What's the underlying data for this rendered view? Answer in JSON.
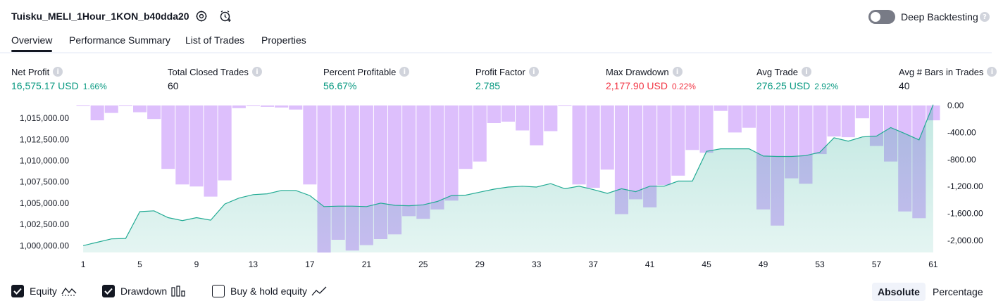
{
  "header": {
    "strategy_name": "Tuisku_MELI_1Hour_1KON_b40dda20",
    "deep_backtesting_label": "Deep Backtesting",
    "deep_backtesting_enabled": false
  },
  "tabs": [
    {
      "label": "Overview",
      "active": true
    },
    {
      "label": "Performance Summary",
      "active": false
    },
    {
      "label": "List of Trades",
      "active": false
    },
    {
      "label": "Properties",
      "active": false
    }
  ],
  "metrics": [
    {
      "label": "Net Profit",
      "value": "16,575.17 USD",
      "pct": "1.66%",
      "tone": "green"
    },
    {
      "label": "Total Closed Trades",
      "value": "60",
      "pct": "",
      "tone": "plain"
    },
    {
      "label": "Percent Profitable",
      "value": "56.67%",
      "pct": "",
      "tone": "green"
    },
    {
      "label": "Profit Factor",
      "value": "2.785",
      "pct": "",
      "tone": "green"
    },
    {
      "label": "Max Drawdown",
      "value": "2,177.90 USD",
      "pct": "0.22%",
      "tone": "red"
    },
    {
      "label": "Avg Trade",
      "value": "276.25 USD",
      "pct": "2.92%",
      "tone": "green"
    },
    {
      "label": "Avg # Bars in Trades",
      "value": "40",
      "pct": "",
      "tone": "plain"
    }
  ],
  "chart_data": {
    "type": "area",
    "x": [
      1,
      2,
      3,
      4,
      5,
      6,
      7,
      8,
      9,
      10,
      11,
      12,
      13,
      14,
      15,
      16,
      17,
      18,
      19,
      20,
      21,
      22,
      23,
      24,
      25,
      26,
      27,
      28,
      29,
      30,
      31,
      32,
      33,
      34,
      35,
      36,
      37,
      38,
      39,
      40,
      41,
      42,
      43,
      44,
      45,
      46,
      47,
      48,
      49,
      50,
      51,
      52,
      53,
      54,
      55,
      56,
      57,
      58,
      59,
      60,
      61
    ],
    "x_tick_labels": [
      "1",
      "5",
      "9",
      "13",
      "17",
      "21",
      "25",
      "29",
      "33",
      "37",
      "41",
      "45",
      "49",
      "53",
      "57",
      "61"
    ],
    "left_axis": {
      "ticks": [
        "1,000,000.00",
        "1,002,500.00",
        "1,005,000.00",
        "1,007,500.00",
        "1,010,000.00",
        "1,012,500.00",
        "1,015,000.00"
      ],
      "ylim": [
        999200,
        1016500
      ]
    },
    "right_axis": {
      "ticks": [
        "0.00",
        "-400.00",
        "-800.00",
        "-1,200.00",
        "-1,600.00",
        "-2,000.00"
      ],
      "ylim": [
        -2177.9,
        0
      ]
    },
    "series": [
      {
        "name": "Equity",
        "color": "#22ab94",
        "values": [
          1000000,
          1000400,
          1000800,
          1000850,
          1004000,
          1004100,
          1003300,
          1002950,
          1003300,
          1003000,
          1004900,
          1005600,
          1006000,
          1006100,
          1006500,
          1006500,
          1005900,
          1004600,
          1004650,
          1004650,
          1004600,
          1005000,
          1004750,
          1004700,
          1004800,
          1005200,
          1005900,
          1005950,
          1006300,
          1006650,
          1006900,
          1007000,
          1006900,
          1007300,
          1006700,
          1007000,
          1006600,
          1006150,
          1006700,
          1006350,
          1007000,
          1007000,
          1007600,
          1007600,
          1011100,
          1011400,
          1011400,
          1011400,
          1010550,
          1010500,
          1010500,
          1010600,
          1011000,
          1012700,
          1012300,
          1012800,
          1012900,
          1013900,
          1013200,
          1012450,
          1016600
        ]
      },
      {
        "name": "Drawdown",
        "color": "#d1a9fb",
        "values": [
          0,
          -220,
          -110,
          0,
          -100,
          -200,
          -940,
          -1170,
          -1200,
          -1350,
          -1110,
          -40,
          0,
          -20,
          -30,
          -60,
          -1170,
          -2180,
          -1990,
          -2150,
          -2070,
          -1980,
          -1910,
          -1640,
          -1680,
          -1540,
          -1410,
          -940,
          -830,
          -260,
          -240,
          -370,
          -590,
          -380,
          0,
          -1170,
          -1220,
          -950,
          -1610,
          -1390,
          -1510,
          -1180,
          -1040,
          -660,
          -700,
          -80,
          -400,
          -330,
          -1540,
          -1780,
          -1080,
          -1160,
          -720,
          -460,
          -470,
          -190,
          -600,
          -830,
          -1570,
          -1670,
          -220
        ]
      }
    ]
  },
  "legend": [
    {
      "label": "Equity",
      "checked": true,
      "icon": "area-wave-icon"
    },
    {
      "label": "Drawdown",
      "checked": true,
      "icon": "bars-icon"
    },
    {
      "label": "Buy & hold equity",
      "checked": false,
      "icon": "line-icon"
    }
  ],
  "view_modes": [
    {
      "label": "Absolute",
      "active": true
    },
    {
      "label": "Percentage",
      "active": false
    }
  ]
}
